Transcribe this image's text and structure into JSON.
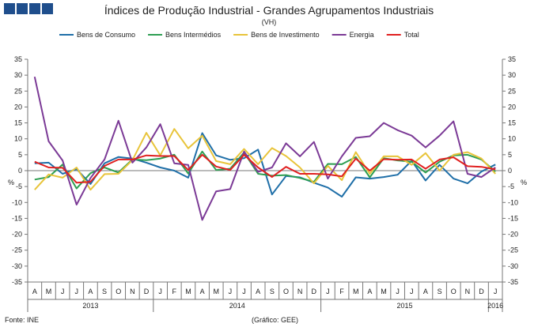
{
  "chart_data": {
    "type": "line",
    "title": "Índices de Produção Industrial - Grandes Agrupamentos Industriais",
    "subtitle": "(VH)",
    "ylabel_left": "%",
    "ylabel_right": "%",
    "ylim": [
      -35,
      35
    ],
    "yticks": [
      -35,
      -30,
      -25,
      -20,
      -15,
      -10,
      -5,
      0,
      5,
      10,
      15,
      20,
      25,
      30,
      35
    ],
    "grid": false,
    "legend_position": "top",
    "x": [
      "A",
      "M",
      "J",
      "J",
      "A",
      "S",
      "O",
      "N",
      "D",
      "J",
      "F",
      "M",
      "A",
      "M",
      "J",
      "J",
      "A",
      "S",
      "O",
      "N",
      "D",
      "J",
      "F",
      "M",
      "A",
      "M",
      "J",
      "J",
      "A",
      "S",
      "O",
      "N",
      "D",
      "J"
    ],
    "years": [
      {
        "label": "2013",
        "start": 0,
        "end": 8
      },
      {
        "label": "2014",
        "start": 9,
        "end": 20
      },
      {
        "label": "2015",
        "start": 21,
        "end": 32
      },
      {
        "label": "2016",
        "start": 33,
        "end": 33
      }
    ],
    "series": [
      {
        "name": "Bens de Consumo",
        "color": "#1f6fa8",
        "values": [
          2.3,
          2.5,
          -1.0,
          0.5,
          -4.2,
          2.3,
          4.3,
          3.8,
          2.5,
          1.0,
          0.0,
          -2.2,
          11.8,
          4.8,
          3.4,
          3.9,
          6.6,
          -7.5,
          -1.7,
          -2.1,
          -3.8,
          -5.3,
          -8.2,
          -2.1,
          -2.5,
          -2.0,
          -1.3,
          3.1,
          -3.1,
          1.8,
          -2.5,
          -4.0,
          -0.3,
          1.9
        ]
      },
      {
        "name": "Bens Intermédios",
        "color": "#2e9e52",
        "values": [
          -2.8,
          -2.0,
          1.9,
          -5.6,
          -0.8,
          1.0,
          -0.6,
          3.5,
          3.3,
          3.8,
          5.0,
          -0.9,
          6.0,
          0.2,
          0.6,
          5.7,
          -1.0,
          -1.6,
          -1.4,
          -2.3,
          -3.5,
          2.1,
          2.0,
          4.3,
          -2.1,
          3.9,
          3.2,
          2.8,
          -0.6,
          2.8,
          4.8,
          5.0,
          3.5,
          -0.3
        ]
      },
      {
        "name": "Bens de Investimento",
        "color": "#e8c43a",
        "values": [
          -6.0,
          -1.2,
          -2.2,
          1.0,
          -6.0,
          -1.1,
          -1.0,
          3.3,
          11.9,
          4.8,
          13.1,
          7.0,
          11.0,
          3.0,
          2.0,
          6.8,
          2.0,
          7.1,
          4.6,
          1.0,
          -4.0,
          1.5,
          -3.0,
          5.8,
          -1.0,
          4.5,
          4.5,
          1.8,
          5.5,
          0.0,
          5.0,
          5.8,
          3.8,
          -1.0
        ]
      },
      {
        "name": "Energia",
        "color": "#7b3a96",
        "values": [
          29.5,
          9.2,
          3.2,
          -10.7,
          -2.3,
          3.5,
          15.7,
          2.5,
          7.3,
          14.6,
          2.3,
          1.8,
          -15.5,
          -6.5,
          -5.8,
          6.0,
          -0.4,
          1.0,
          8.6,
          4.5,
          9.0,
          -2.5,
          4.5,
          10.3,
          10.8,
          15.0,
          12.7,
          11.0,
          7.3,
          11.0,
          15.5,
          -1.0,
          -2.0,
          1.0
        ]
      },
      {
        "name": "Total",
        "color": "#e02020",
        "values": [
          2.8,
          1.0,
          0.9,
          -3.8,
          -3.5,
          1.5,
          3.5,
          3.5,
          4.8,
          4.6,
          4.6,
          0.2,
          5.0,
          1.3,
          0.2,
          5.0,
          1.0,
          -2.0,
          1.2,
          -1.0,
          -1.0,
          -1.2,
          -1.8,
          3.8,
          0.0,
          3.6,
          3.4,
          3.5,
          0.6,
          3.5,
          4.2,
          1.4,
          1.2,
          0.4
        ]
      }
    ]
  },
  "logo_label": "GEE",
  "footer": {
    "source": "Fonte: INE",
    "credit": "(Gráfico: GEE)"
  }
}
